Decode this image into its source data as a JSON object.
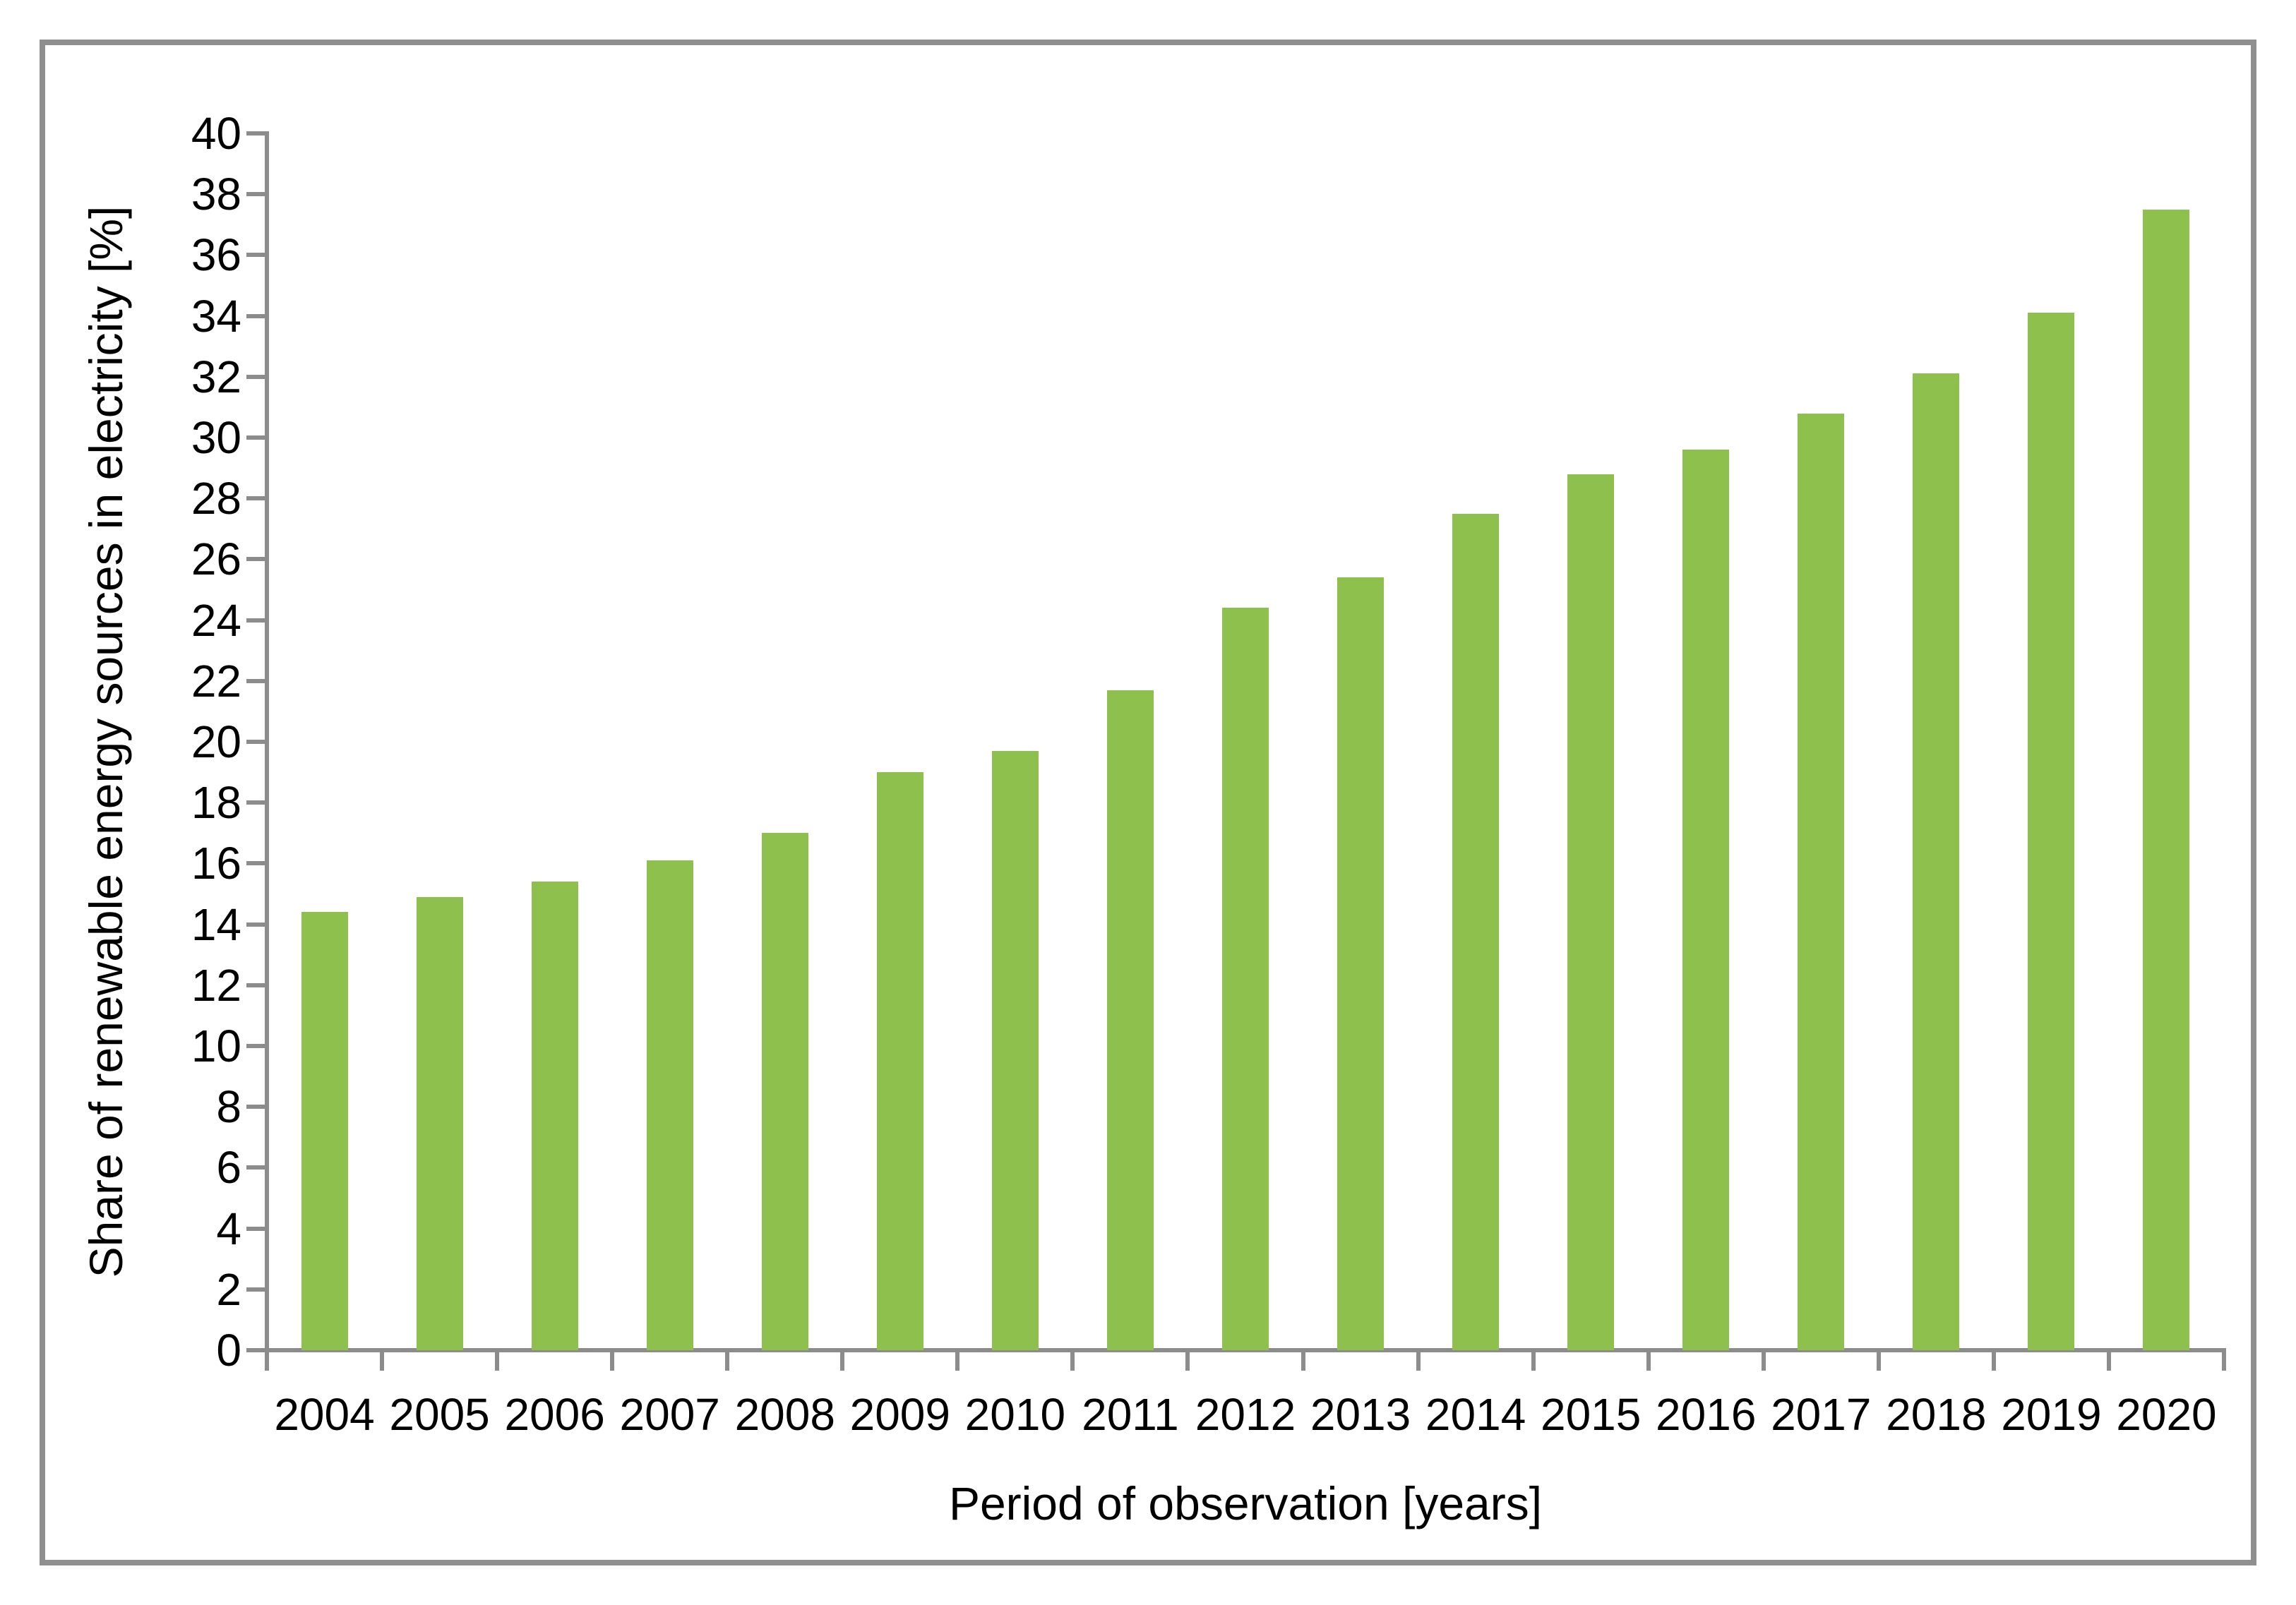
{
  "chart_data": {
    "type": "bar",
    "title": "",
    "xlabel": "Period of observation [years]",
    "ylabel": "Share of renewable energy sources in electricity [%]",
    "categories": [
      "2004",
      "2005",
      "2006",
      "2007",
      "2008",
      "2009",
      "2010",
      "2011",
      "2012",
      "2013",
      "2014",
      "2015",
      "2016",
      "2017",
      "2018",
      "2019",
      "2020"
    ],
    "values": [
      14.4,
      14.9,
      15.4,
      16.1,
      17.0,
      19.0,
      19.7,
      21.7,
      24.4,
      25.4,
      27.5,
      28.8,
      29.6,
      30.8,
      32.1,
      34.1,
      37.5
    ],
    "ylim": [
      0,
      40
    ],
    "ytick_step": 2,
    "grid": false,
    "legend": "none",
    "colors": {
      "bar": "#8DC04D",
      "axis": "#8C8C8C",
      "border": "#8F8F8F",
      "text": "#000000",
      "background": "#FFFFFF"
    }
  }
}
